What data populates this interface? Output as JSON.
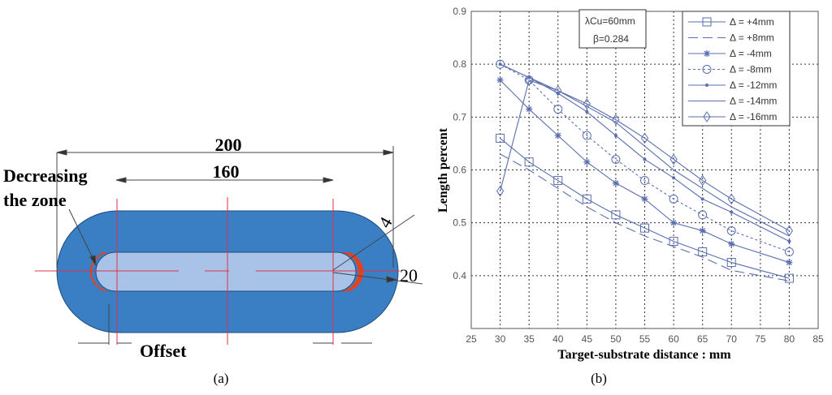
{
  "diagram": {
    "caption": "(a)",
    "dim_outer": "200",
    "dim_inner": "160",
    "dim_radius_small": "4",
    "dim_radius_large": "20",
    "label_zone_line1": "Decreasing",
    "label_zone_line2": "the zone",
    "label_offset": "Offset",
    "colors": {
      "outer": "#3a7fc4",
      "inner": "#a9c3e8",
      "zone": "#e8401c",
      "axis": "#e0304a"
    }
  },
  "chart_data": {
    "type": "line",
    "caption": "(b)",
    "xlabel": "Target-substrate distance : mm",
    "ylabel": "Length percent",
    "xlim": [
      25,
      85
    ],
    "ylim": [
      0.3,
      0.9
    ],
    "xticks": [
      25,
      30,
      35,
      40,
      45,
      50,
      55,
      60,
      65,
      70,
      75,
      80,
      85
    ],
    "yticks": [
      0.4,
      0.5,
      0.6,
      0.7,
      0.8,
      0.9
    ],
    "grid": true,
    "legend_position": "top-right",
    "annotation": {
      "line1": "λCu=60mm",
      "line2": "β=0.284"
    },
    "x": [
      30,
      35,
      40,
      45,
      50,
      55,
      60,
      65,
      70,
      80
    ],
    "color": "#5a6fb0",
    "series": [
      {
        "name": "Δ = +4mm",
        "marker": "square",
        "dash": "solid",
        "values": [
          0.66,
          0.615,
          0.58,
          0.545,
          0.515,
          0.49,
          0.465,
          0.445,
          0.425,
          0.395
        ]
      },
      {
        "name": "Δ = +8mm",
        "marker": "none",
        "dash": "dashed",
        "values": [
          0.63,
          0.6,
          0.565,
          0.53,
          0.5,
          0.475,
          0.455,
          0.435,
          0.41,
          0.39
        ]
      },
      {
        "name": "Δ = -4mm",
        "marker": "star",
        "dash": "solid",
        "values": [
          0.77,
          0.715,
          0.665,
          0.615,
          0.575,
          0.545,
          0.5,
          0.485,
          0.46,
          0.425
        ]
      },
      {
        "name": "Δ = -8mm",
        "marker": "circle",
        "dash": "dotted",
        "values": [
          0.8,
          0.77,
          0.715,
          0.665,
          0.62,
          0.58,
          0.545,
          0.515,
          0.485,
          0.445
        ]
      },
      {
        "name": "Δ = -12mm",
        "marker": "dot",
        "dash": "solid",
        "values": [
          0.8,
          0.775,
          0.745,
          0.71,
          0.665,
          0.62,
          0.585,
          0.545,
          0.52,
          0.465
        ]
      },
      {
        "name": "Δ = -14mm",
        "marker": "none",
        "dash": "solid",
        "values": [
          0.8,
          0.775,
          0.75,
          0.72,
          0.69,
          0.645,
          0.6,
          0.565,
          0.53,
          0.475
        ]
      },
      {
        "name": "Δ = -16mm",
        "marker": "diamond",
        "dash": "solid",
        "values": [
          0.56,
          0.77,
          0.75,
          0.725,
          0.695,
          0.66,
          0.62,
          0.58,
          0.545,
          0.485
        ]
      }
    ]
  }
}
